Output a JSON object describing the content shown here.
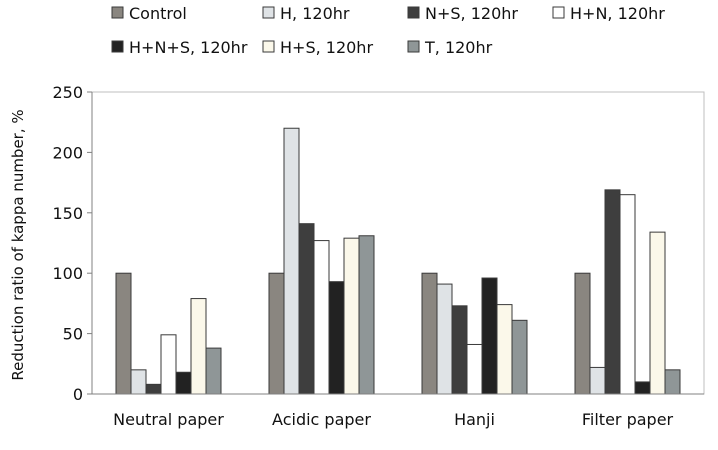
{
  "chart_data": {
    "type": "bar",
    "ylabel": "Reduction ratio of kappa number, %",
    "xlabel": "",
    "ylim": [
      0,
      250
    ],
    "yticks": [
      0,
      50,
      100,
      150,
      200,
      250
    ],
    "grid": false,
    "legend_position": "top",
    "categories": [
      "Neutral paper",
      "Acidic paper",
      "Hanji",
      "Filter paper"
    ],
    "series": [
      {
        "name": "Control",
        "color": "#8a8680",
        "values": [
          100,
          100,
          100,
          100
        ]
      },
      {
        "name": "H, 120hr",
        "color": "#dfe3e6",
        "values": [
          20,
          220,
          91,
          22
        ]
      },
      {
        "name": "N+S, 120hr",
        "color": "#3e3e3e",
        "values": [
          8,
          141,
          73,
          169
        ]
      },
      {
        "name": "H+N, 120hr",
        "color": "#ffffff",
        "values": [
          49,
          127,
          41,
          165
        ]
      },
      {
        "name": "H+N+S, 120hr",
        "color": "#222222",
        "values": [
          18,
          93,
          96,
          10
        ]
      },
      {
        "name": "H+S, 120hr",
        "color": "#fbf8ea",
        "values": [
          79,
          129,
          74,
          134
        ]
      },
      {
        "name": "T, 120hr",
        "color": "#8f9697",
        "values": [
          38,
          131,
          61,
          20
        ]
      }
    ]
  }
}
